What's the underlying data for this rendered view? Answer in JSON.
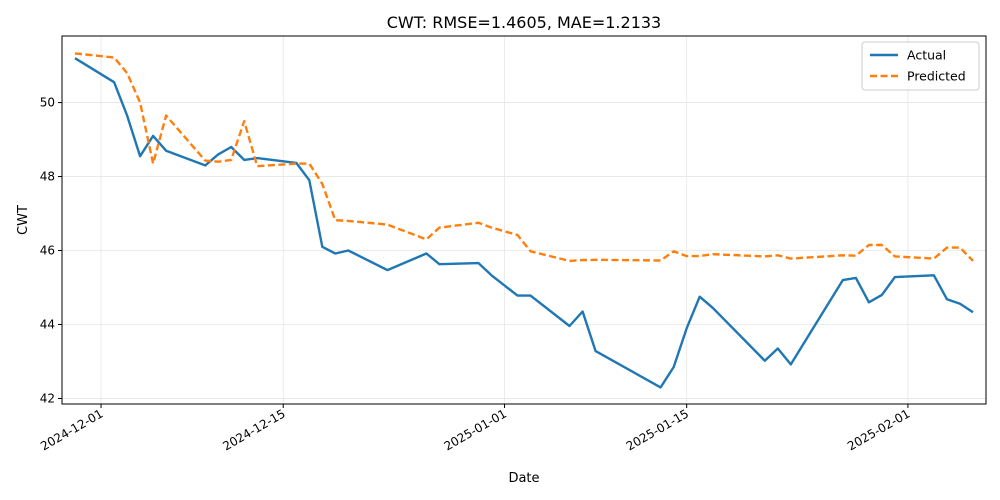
{
  "chart_data": {
    "type": "line",
    "title": "CWT: RMSE=1.4605, MAE=1.2133",
    "xlabel": "Date",
    "ylabel": "CWT",
    "x_ticks": [
      "2024-12-01",
      "2024-12-15",
      "2025-01-01",
      "2025-01-15",
      "2025-02-01"
    ],
    "y_ticks": [
      42,
      44,
      46,
      48,
      50
    ],
    "xlim": [
      "2024-11-28",
      "2025-02-07"
    ],
    "ylim": [
      41.85,
      51.8
    ],
    "grid": true,
    "legend_position": "top-right",
    "x": [
      "2024-11-29",
      "2024-12-02",
      "2024-12-03",
      "2024-12-04",
      "2024-12-05",
      "2024-12-06",
      "2024-12-09",
      "2024-12-10",
      "2024-12-11",
      "2024-12-12",
      "2024-12-13",
      "2024-12-16",
      "2024-12-17",
      "2024-12-18",
      "2024-12-19",
      "2024-12-20",
      "2024-12-23",
      "2024-12-26",
      "2024-12-27",
      "2024-12-30",
      "2024-12-31",
      "2025-01-02",
      "2025-01-03",
      "2025-01-06",
      "2025-01-07",
      "2025-01-08",
      "2025-01-13",
      "2025-01-14",
      "2025-01-15",
      "2025-01-16",
      "2025-01-17",
      "2025-01-21",
      "2025-01-22",
      "2025-01-23",
      "2025-01-27",
      "2025-01-28",
      "2025-01-29",
      "2025-01-30",
      "2025-01-31",
      "2025-02-03",
      "2025-02-04",
      "2025-02-05",
      "2025-02-06"
    ],
    "series": [
      {
        "name": "Actual",
        "color": "#1f77b4",
        "style": "solid",
        "values": [
          51.2,
          50.55,
          49.65,
          48.55,
          49.1,
          48.7,
          48.3,
          48.6,
          48.8,
          48.45,
          48.5,
          48.37,
          47.9,
          46.1,
          45.92,
          46.0,
          45.47,
          45.92,
          45.63,
          45.66,
          45.33,
          44.78,
          44.78,
          43.96,
          44.35,
          43.28,
          42.3,
          42.85,
          43.9,
          44.75,
          44.45,
          43.02,
          43.35,
          42.92,
          45.2,
          45.26,
          44.6,
          44.8,
          45.28,
          45.33,
          44.68,
          44.56,
          44.33
        ]
      },
      {
        "name": "Predicted",
        "color": "#ff7f0e",
        "style": "dashed",
        "values": [
          51.33,
          51.22,
          50.8,
          50.0,
          48.35,
          49.65,
          48.43,
          48.4,
          48.45,
          49.5,
          48.28,
          48.35,
          48.35,
          47.8,
          46.82,
          46.8,
          46.7,
          46.3,
          46.62,
          46.75,
          46.62,
          46.42,
          45.98,
          45.72,
          45.74,
          45.75,
          45.73,
          45.98,
          45.85,
          45.85,
          45.9,
          45.84,
          45.87,
          45.78,
          45.87,
          45.86,
          46.15,
          46.15,
          45.84,
          45.78,
          46.08,
          46.08,
          45.72
        ]
      }
    ]
  }
}
